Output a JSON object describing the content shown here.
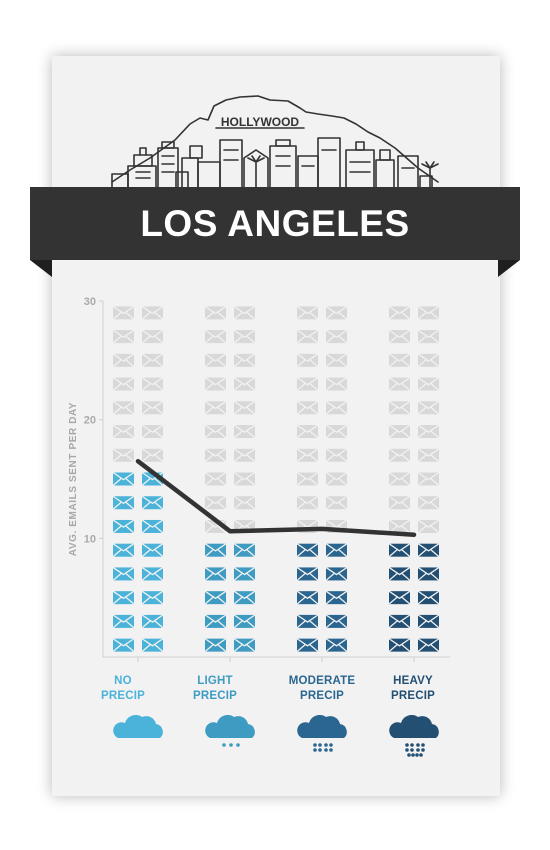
{
  "city": "LOS ANGELES",
  "skyline_sign": "HOLLYWOOD",
  "colors": {
    "banner": "#333333",
    "card": "#f2f2f2",
    "envelope_empty": "#d8d8d8",
    "line": "#333333",
    "no_precip": "#4bb3d9",
    "light_precip": "#3e9bc2",
    "moderate_precip": "#2a6690",
    "heavy_precip": "#234f73"
  },
  "chart_data": {
    "type": "bar",
    "ylabel": "AVG. EMAILS SENT PER DAY",
    "ylim": [
      0,
      30
    ],
    "yticks": [
      10,
      20,
      30
    ],
    "grid": false,
    "categories": [
      {
        "line1": "NO",
        "line2": "PRECIP",
        "icon": "cloud-icon",
        "color": "#4bb3d9"
      },
      {
        "line1": "LIGHT",
        "line2": "PRECIP",
        "icon": "cloud-light-rain-icon",
        "color": "#3e9bc2"
      },
      {
        "line1": "MODERATE",
        "line2": "PRECIP",
        "icon": "cloud-moderate-rain-icon",
        "color": "#2a6690"
      },
      {
        "line1": "HEAVY",
        "line2": "PRECIP",
        "icon": "cloud-heavy-rain-icon",
        "color": "#234f73"
      }
    ],
    "values": [
      16,
      10.5,
      10.5,
      9.5
    ],
    "line_values": [
      16.5,
      10.6,
      10.8,
      10.3
    ]
  }
}
